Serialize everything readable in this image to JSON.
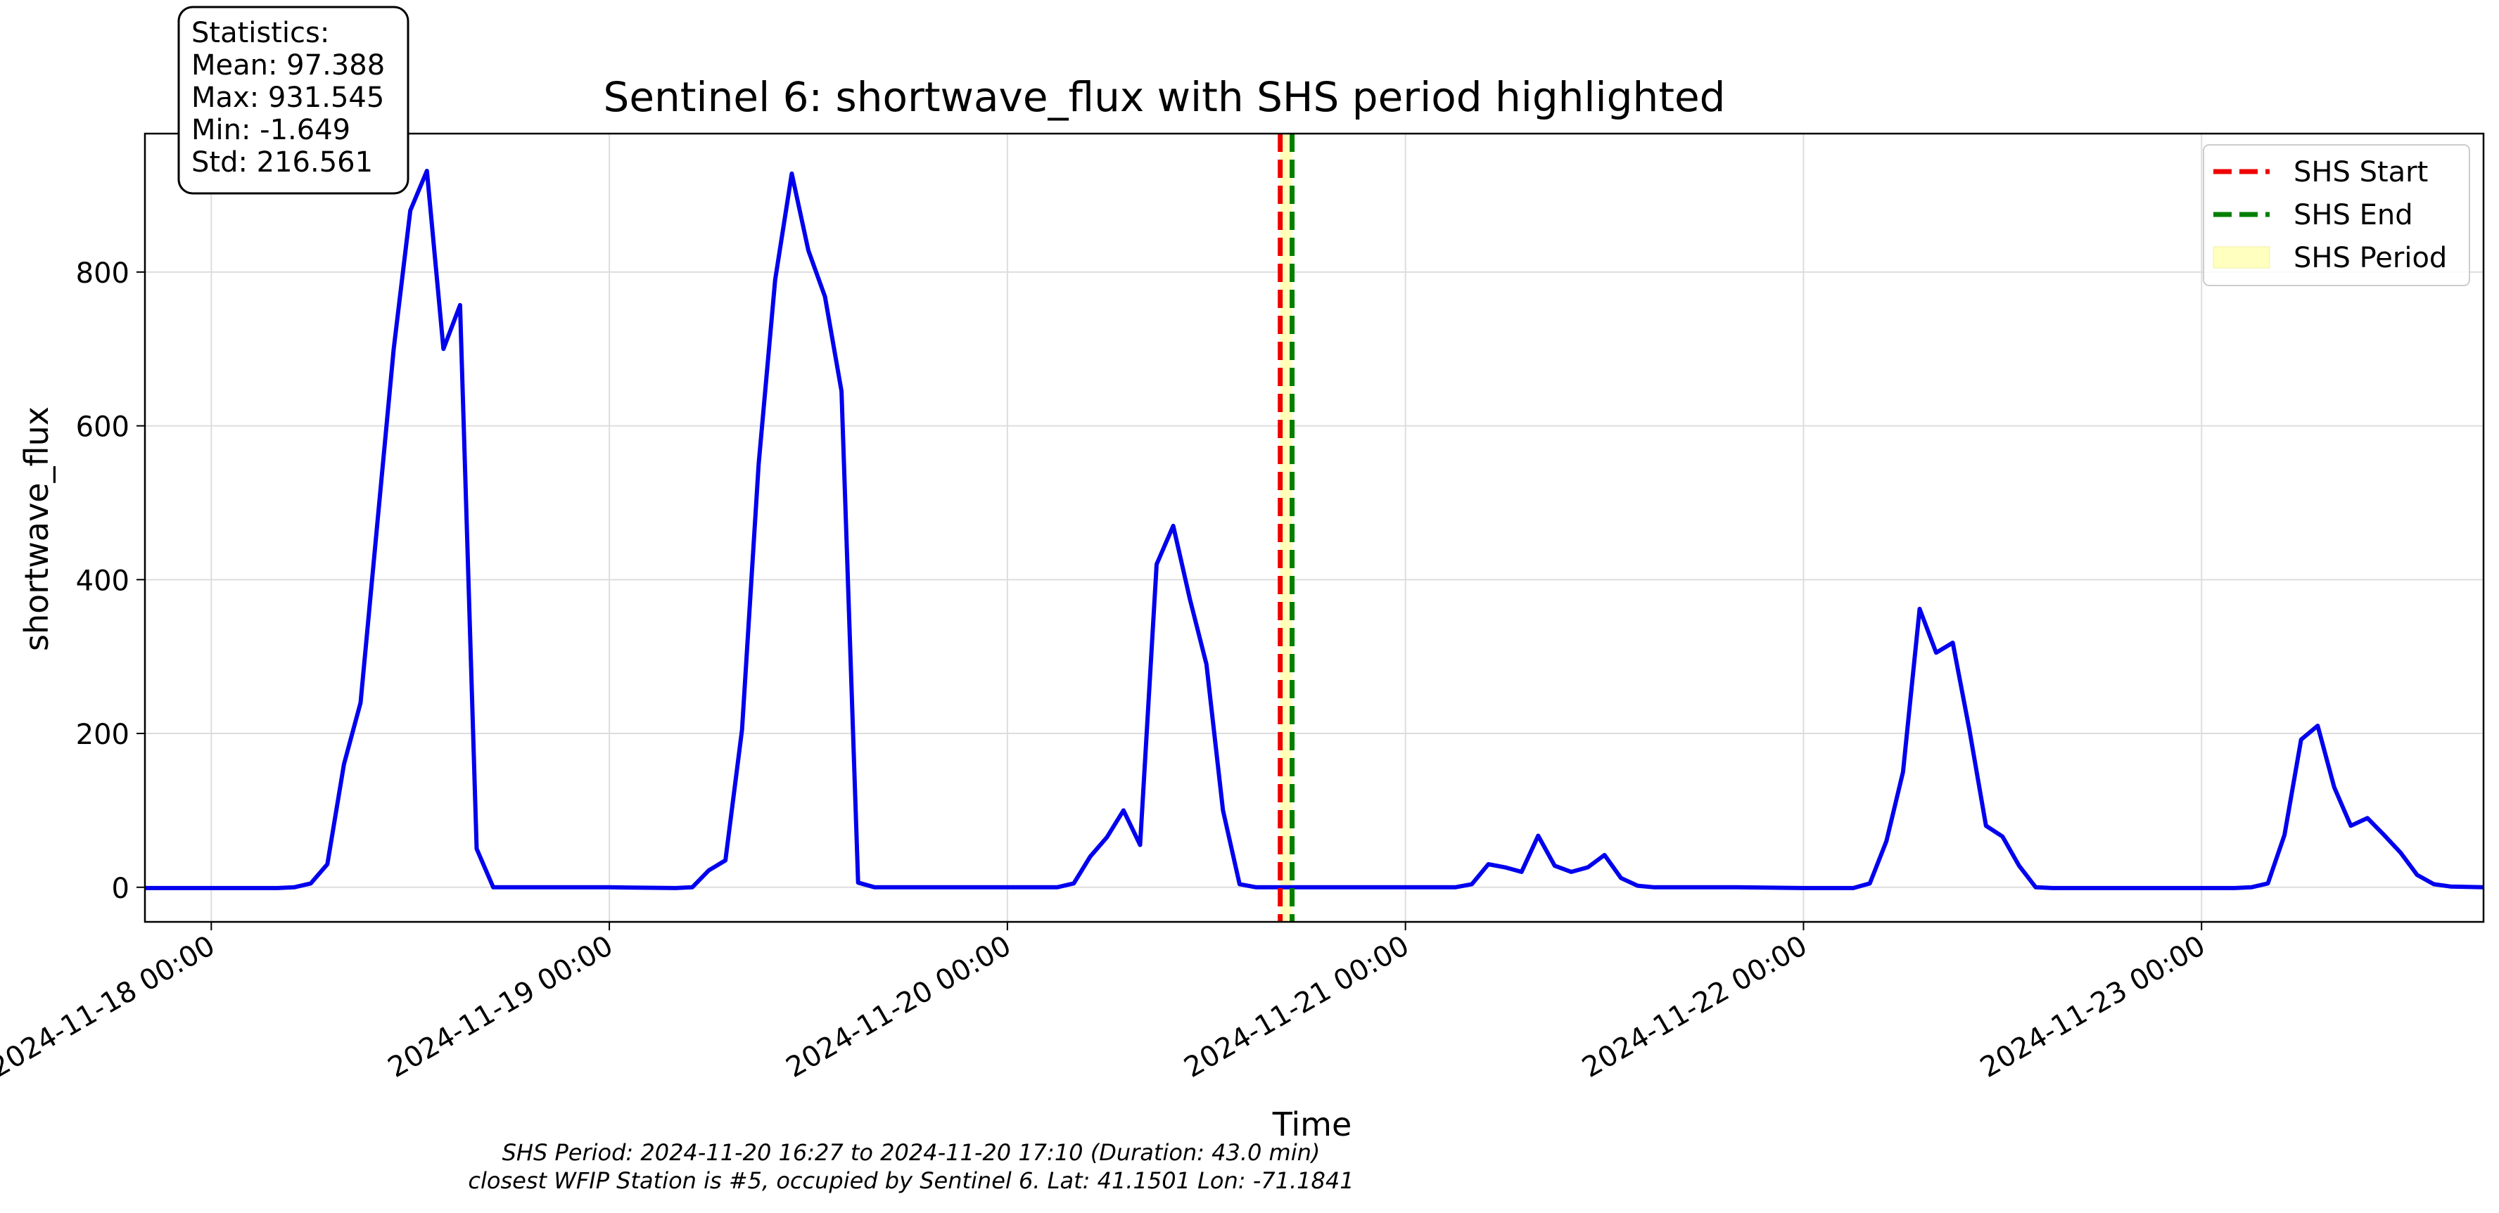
{
  "chart_data": {
    "type": "line",
    "title": "Sentinel 6: shortwave_flux with SHS period highlighted",
    "xlabel": "Time",
    "ylabel": "shortwave_flux",
    "x_unit": "hours since 2024-11-18 00:00",
    "xlim": [
      "2024-11-17 20:00",
      "2024-11-23 17:00"
    ],
    "ylim": [
      -45,
      980
    ],
    "x_ticks": [
      "2024-11-18 00:00",
      "2024-11-19 00:00",
      "2024-11-20 00:00",
      "2024-11-21 00:00",
      "2024-11-22 00:00",
      "2024-11-23 00:00"
    ],
    "y_ticks": [
      0,
      200,
      400,
      600,
      800
    ],
    "grid": true,
    "series": [
      {
        "name": "shortwave_flux",
        "color": "#0000ee",
        "points": [
          [
            "2024-11-17 20:00",
            -1
          ],
          [
            "2024-11-17 22:00",
            -1
          ],
          [
            "2024-11-18 00:00",
            -1
          ],
          [
            "2024-11-18 02:00",
            -1
          ],
          [
            "2024-11-18 04:00",
            -1
          ],
          [
            "2024-11-18 05:00",
            0
          ],
          [
            "2024-11-18 06:00",
            5
          ],
          [
            "2024-11-18 07:00",
            30
          ],
          [
            "2024-11-18 08:00",
            160
          ],
          [
            "2024-11-18 09:00",
            240
          ],
          [
            "2024-11-18 10:00",
            470
          ],
          [
            "2024-11-18 11:00",
            700
          ],
          [
            "2024-11-18 12:00",
            880
          ],
          [
            "2024-11-18 13:00",
            931.5
          ],
          [
            "2024-11-18 14:00",
            700
          ],
          [
            "2024-11-18 15:00",
            757
          ],
          [
            "2024-11-18 16:00",
            50
          ],
          [
            "2024-11-18 17:00",
            0
          ],
          [
            "2024-11-18 20:00",
            0
          ],
          [
            "2024-11-19 00:00",
            0
          ],
          [
            "2024-11-19 04:00",
            -1
          ],
          [
            "2024-11-19 05:00",
            0
          ],
          [
            "2024-11-19 06:00",
            22
          ],
          [
            "2024-11-19 07:00",
            35
          ],
          [
            "2024-11-19 08:00",
            205
          ],
          [
            "2024-11-19 09:00",
            550
          ],
          [
            "2024-11-19 10:00",
            790
          ],
          [
            "2024-11-19 11:00",
            928
          ],
          [
            "2024-11-19 12:00",
            828
          ],
          [
            "2024-11-19 13:00",
            768
          ],
          [
            "2024-11-19 14:00",
            645
          ],
          [
            "2024-11-19 15:00",
            6
          ],
          [
            "2024-11-19 16:00",
            0
          ],
          [
            "2024-11-19 20:00",
            0
          ],
          [
            "2024-11-20 00:00",
            0
          ],
          [
            "2024-11-20 03:00",
            0
          ],
          [
            "2024-11-20 04:00",
            5
          ],
          [
            "2024-11-20 05:00",
            40
          ],
          [
            "2024-11-20 06:00",
            65
          ],
          [
            "2024-11-20 07:00",
            100
          ],
          [
            "2024-11-20 08:00",
            55
          ],
          [
            "2024-11-20 09:00",
            420
          ],
          [
            "2024-11-20 10:00",
            470
          ],
          [
            "2024-11-20 11:00",
            375
          ],
          [
            "2024-11-20 12:00",
            290
          ],
          [
            "2024-11-20 13:00",
            100
          ],
          [
            "2024-11-20 14:00",
            4
          ],
          [
            "2024-11-20 15:00",
            0
          ],
          [
            "2024-11-20 18:00",
            0
          ],
          [
            "2024-11-21 00:00",
            0
          ],
          [
            "2024-11-21 03:00",
            0
          ],
          [
            "2024-11-21 04:00",
            4
          ],
          [
            "2024-11-21 05:00",
            30
          ],
          [
            "2024-11-21 06:00",
            26
          ],
          [
            "2024-11-21 07:00",
            20
          ],
          [
            "2024-11-21 08:00",
            67
          ],
          [
            "2024-11-21 09:00",
            28
          ],
          [
            "2024-11-21 10:00",
            20
          ],
          [
            "2024-11-21 11:00",
            26
          ],
          [
            "2024-11-21 12:00",
            42
          ],
          [
            "2024-11-21 13:00",
            12
          ],
          [
            "2024-11-21 14:00",
            2
          ],
          [
            "2024-11-21 15:00",
            0
          ],
          [
            "2024-11-21 20:00",
            0
          ],
          [
            "2024-11-22 00:00",
            -1
          ],
          [
            "2024-11-22 03:00",
            -1
          ],
          [
            "2024-11-22 04:00",
            5
          ],
          [
            "2024-11-22 05:00",
            60
          ],
          [
            "2024-11-22 06:00",
            150
          ],
          [
            "2024-11-22 07:00",
            362
          ],
          [
            "2024-11-22 08:00",
            305
          ],
          [
            "2024-11-22 09:00",
            318
          ],
          [
            "2024-11-22 10:00",
            205
          ],
          [
            "2024-11-22 11:00",
            80
          ],
          [
            "2024-11-22 12:00",
            66
          ],
          [
            "2024-11-22 13:00",
            28
          ],
          [
            "2024-11-22 14:00",
            0
          ],
          [
            "2024-11-22 15:00",
            -1
          ],
          [
            "2024-11-22 20:00",
            -1
          ],
          [
            "2024-11-23 00:00",
            -1
          ],
          [
            "2024-11-23 02:00",
            -1
          ],
          [
            "2024-11-23 03:00",
            0
          ],
          [
            "2024-11-23 04:00",
            5
          ],
          [
            "2024-11-23 05:00",
            68
          ],
          [
            "2024-11-23 06:00",
            192
          ],
          [
            "2024-11-23 07:00",
            210
          ],
          [
            "2024-11-23 08:00",
            130
          ],
          [
            "2024-11-23 09:00",
            80
          ],
          [
            "2024-11-23 10:00",
            90
          ],
          [
            "2024-11-23 11:00",
            68
          ],
          [
            "2024-11-23 12:00",
            45
          ],
          [
            "2024-11-23 13:00",
            16
          ],
          [
            "2024-11-23 14:00",
            4
          ],
          [
            "2024-11-23 15:00",
            1
          ],
          [
            "2024-11-23 17:00",
            0
          ]
        ]
      }
    ],
    "vlines": [
      {
        "name": "SHS Start",
        "x": "2024-11-20 16:27",
        "color": "#ee0000",
        "style": "dashed"
      },
      {
        "name": "SHS End",
        "x": "2024-11-20 17:10",
        "color": "#007f00",
        "style": "dashed"
      }
    ],
    "span": {
      "name": "SHS Period",
      "from": "2024-11-20 16:27",
      "to": "2024-11-20 17:10",
      "color": "#ffffb0"
    },
    "legend": {
      "position": "top-right",
      "entries": [
        {
          "label": "SHS Start",
          "color": "#ee0000",
          "kind": "dashed-line"
        },
        {
          "label": "SHS End",
          "color": "#007f00",
          "kind": "dashed-line"
        },
        {
          "label": "SHS Period",
          "color": "#ffffc0",
          "kind": "patch"
        }
      ]
    },
    "stats_box": {
      "position": "top-left",
      "lines": [
        "Statistics:",
        "Mean: 97.388",
        "Max: 931.545",
        "Min: -1.649",
        "Std: 216.561"
      ]
    }
  },
  "caption": {
    "line1": "SHS Period: 2024-11-20 16:27 to 2024-11-20 17:10 (Duration: 43.0 min)",
    "line2": "closest WFIP Station is #5, occupied by Sentinel 6. Lat: 41.1501 Lon: -71.1841"
  }
}
